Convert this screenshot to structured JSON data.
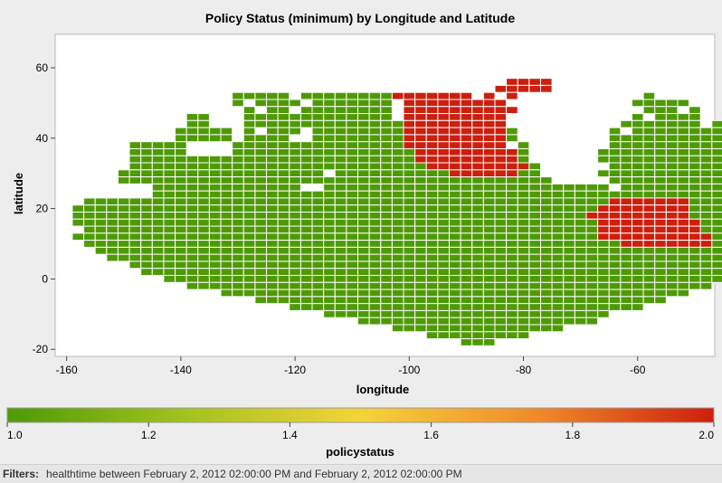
{
  "chart_data": {
    "type": "heatmap",
    "title": "Policy Status (minimum) by Longitude and Latitude",
    "xlabel": "longitude",
    "ylabel": "latitude",
    "xlim": [
      -162,
      -46.5
    ],
    "ylim": [
      -22,
      69.5
    ],
    "xticks": [
      -160,
      -140,
      -120,
      -100,
      -80,
      -60
    ],
    "yticks": [
      -20,
      0,
      20,
      40,
      60
    ],
    "cell_size": [
      2,
      2
    ],
    "grid": false,
    "colorbar": {
      "label": "policystatus",
      "min": 1.0,
      "max": 2.0,
      "ticks": [
        "1.0",
        "1.2",
        "1.4",
        "1.6",
        "1.8",
        "2.0"
      ],
      "colors": [
        "#4e9a06",
        "#a3c21e",
        "#f4d33a",
        "#f08a2a",
        "#cc1f0e"
      ]
    },
    "grid_origin": {
      "lon": -158,
      "lat": -18
    },
    "value_legend": {
      "o": 1,
      "x": 2
    },
    "rows": [
      "......................................xxxx......................",
      ".....................................xxxxx......................",
      "..............ooooo.ooooooooxxxxxxx.x.x...........o.............",
      "..............o.oooo.ooooooo.xxxxxxxxx...........ooooo..........",
      "...............o.oo.oooooooo.xxxxxxxxxx...........ooo.o.........",
      "..........oo...ooooooooooooo.xxxxxxxxx...........o.oooo..ooooo..",
      "..........oo...ooooooooooooooxxxxxxxxx..........ooooooo.ooooo...",
      ".........ooooo.o.ooo.ooooooooxxxxxxxxxo........o.oooooooooooo..o",
      ".........ooooo.oooo..ooooooooxxxxxxxxxo........oooooooooooooooo.",
      ".....ooooo....oooooooooooooooxxxxxxxxx.o.......ooooooooooooooooo",
      ".....ooooo....ooooooooooooooooxxxxxxxxxo......oooooooooooooooooo",
      ".....oooooooooooooooooooooooooxxxxxxxxxo......ooooooooooooooooo.",
      ".....ooooooooooooooooooooooooooxxxxxxxxxo......ooooooooooooooooo",
      "....oooooooooooooooooo.ooooooooooxxxxxxoo.....ooooooooooooooooo.",
      "....oooooooooooooooooooooooooooooooooooooo.....oooooooooooooooooo",
      ".......ooooooooooooo..ooooooooooooooooooooooooo.oooooooooooooooooo",
      ".......ooooooooooooooooooooooooooooooooooooooooooooooooooooooooo.",
      ".ooooooooooooooooooooooooooooooooooooooooooooooxxxxxxxoooooooooo.",
      "ooooooooooooooooooooooooooooooooooooooooooooooxxxxxxxxooooooooooo",
      "oooooooooooooooooooooooooooooooooooooooooooooxxxxxxxxxoooooooooooo",
      "ooooooooooooooooooooooooooooooooooooooooooooooxxxxxxxxxooooooooooo",
      ".oooooooooooooooooooooooooooooooooooooooooooooxxxxxxxxxoooooooooo.",
      "ooooooooooooooooooooooooooooooooooooooooooooooxxxxxxxxxxooooooooo",
      ".oooooooooooooooooooooooooooooooooooooooooooooooxxxxxxxxoooooooooo",
      "..ooooooooooooooooooooooooooooooooooooooooooooooooooooooooooooo..",
      "...ooooooooooooooooooooooooooooooooooooooooooooooooooooooooooo...",
      ".....ooooooooooooooooooooooooooooooooooooooooooooooooooooooooo....",
      "......oooooooooooooooooooooooooooooooooooooooooooooooooooooo.....",
      "........ooooooooooooooooooooooooooooooooooooooooooooooooooo......",
      "..........oooooooooooooooooooooooooooooooooooooooooooooo........",
      ".............ooooooooooooooooooooooooooooooooooooooooo..........",
      "................oooooooooooooooooooooooooooooooooooo............",
      "...................ooooooooooooooooooooooooooooooo..............",
      "......................ooooooooooooooooooooooooo.................",
      ".........................ooooooooooooooooooooo..................",
      "............................ooooooooooooooo.....................",
      "...............................ooooooooo.......................",
      "..................................ooo..........................."
    ]
  },
  "filters": {
    "label": "Filters:",
    "text": "healthtime between February 2, 2012 02:00:00 PM and February 2, 2012 02:00:00 PM"
  }
}
